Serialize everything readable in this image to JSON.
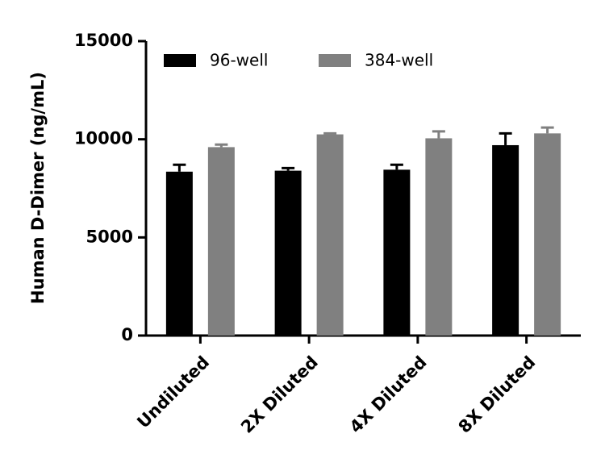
{
  "chart_data": {
    "type": "bar",
    "y_label": "Human D-Dimer (ng/mL)",
    "categories": [
      "Undiluted",
      "2X Diluted",
      "4X Diluted",
      "8X Diluted"
    ],
    "series": [
      {
        "name": "96-well",
        "color": "#000000",
        "values": [
          8350,
          8400,
          8450,
          9700
        ],
        "errors": [
          350,
          130,
          250,
          600
        ]
      },
      {
        "name": "384-well",
        "color": "#808080",
        "values": [
          9600,
          10250,
          10050,
          10300
        ],
        "errors": [
          130,
          50,
          350,
          300
        ]
      }
    ],
    "ylim": [
      0,
      15000
    ],
    "yticks": [
      0,
      5000,
      10000,
      15000
    ],
    "legend": "top"
  }
}
